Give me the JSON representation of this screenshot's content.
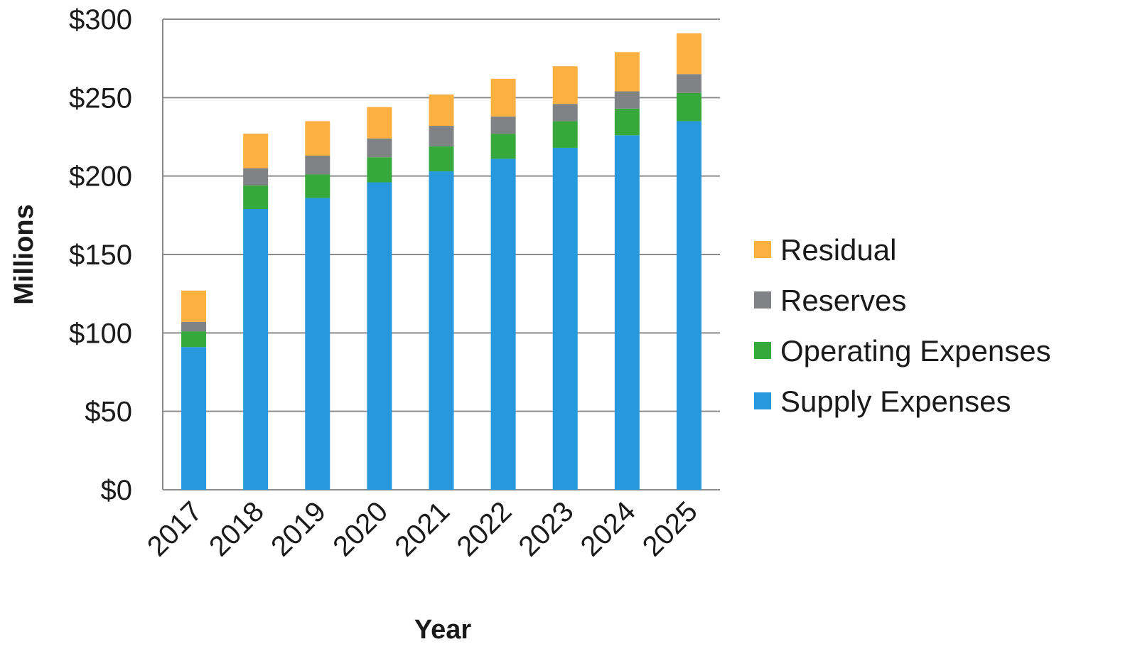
{
  "chart_data": {
    "type": "bar",
    "stacked": true,
    "title": "",
    "xlabel": "Year",
    "ylabel": "Millions",
    "ylim": [
      0,
      300
    ],
    "yticks": [
      0,
      50,
      100,
      150,
      200,
      250,
      300
    ],
    "ytick_labels": [
      "$0",
      "$50",
      "$100",
      "$150",
      "$200",
      "$250",
      "$300"
    ],
    "categories": [
      "2017",
      "2018",
      "2019",
      "2020",
      "2021",
      "2022",
      "2023",
      "2024",
      "2025"
    ],
    "grid": "horizontal",
    "legend_position": "right",
    "series": [
      {
        "name": "Supply Expenses",
        "color": "#2698DB",
        "values": [
          91,
          179,
          186,
          196,
          203,
          211,
          218,
          226,
          235
        ]
      },
      {
        "name": "Operating Expenses",
        "color": "#36A83C",
        "values": [
          10,
          15,
          15,
          16,
          16,
          16,
          17,
          17,
          18
        ]
      },
      {
        "name": "Reserves",
        "color": "#808285",
        "values": [
          6,
          11,
          12,
          12,
          13,
          11,
          11,
          11,
          12
        ]
      },
      {
        "name": "Residual",
        "color": "#FBB040",
        "values": [
          20,
          22,
          22,
          20,
          20,
          24,
          24,
          25,
          26
        ]
      }
    ]
  }
}
